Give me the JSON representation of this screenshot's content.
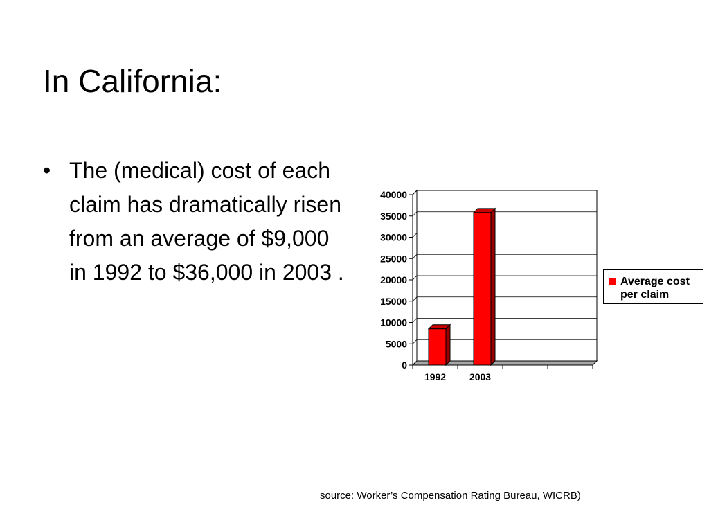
{
  "slide": {
    "title": "In California:",
    "bullets": [
      "The (medical) cost of each claim has dramatically risen from an average of $9,000 in 1992 to $36,000 in 2003 ."
    ],
    "source": "source: Worker’s Compensation Rating Bureau, WICRB)"
  },
  "chart_data": {
    "type": "bar",
    "title": "",
    "xlabel": "",
    "ylabel": "",
    "categories": [
      "1992",
      "2003"
    ],
    "series": [
      {
        "name": "Average cost per claim",
        "values": [
          8500,
          35800
        ],
        "color": "#ff0000"
      }
    ],
    "ylim": [
      0,
      40000
    ],
    "yticks": [
      "0",
      "5000",
      "10000",
      "15000",
      "20000",
      "25000",
      "30000",
      "35000",
      "40000"
    ],
    "grid": true,
    "legend_position": "right",
    "style": "3d-column"
  }
}
